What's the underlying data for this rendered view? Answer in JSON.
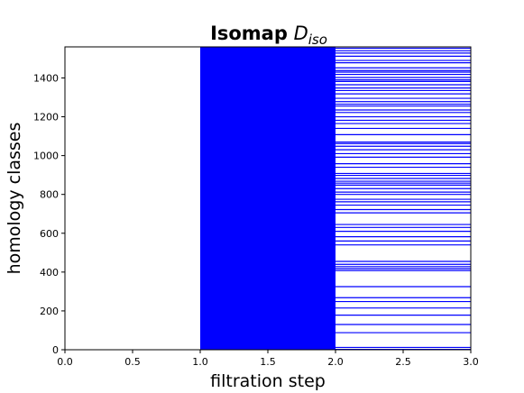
{
  "chart_data": {
    "type": "barcode",
    "title": {
      "bold": "Isomap",
      "math_main": "D",
      "math_sub": "iso"
    },
    "xlabel": "filtration step",
    "ylabel": "homology classes",
    "xlim": [
      0.0,
      3.0
    ],
    "ylim": [
      0,
      1560
    ],
    "xticks": [
      "0.0",
      "0.5",
      "1.0",
      "1.5",
      "2.0",
      "2.5",
      "3.0"
    ],
    "yticks": [
      "0",
      "200",
      "400",
      "600",
      "800",
      "1000",
      "1200",
      "1400"
    ],
    "bar_color": "#0000ff",
    "segments": [
      {
        "name": "dense-block",
        "x_start": 1.0,
        "x_end": 2.0,
        "y_from": 0,
        "y_to": 1560,
        "note": "every class present"
      },
      {
        "name": "sparse-bars",
        "x_start": 2.0,
        "x_end": 3.0
      }
    ],
    "sparse_bar_y": [
      2,
      12,
      88,
      130,
      178,
      215,
      248,
      268,
      325,
      408,
      418,
      428,
      440,
      455,
      540,
      560,
      582,
      610,
      630,
      645,
      705,
      722,
      745,
      762,
      775,
      800,
      812,
      830,
      848,
      858,
      868,
      882,
      898,
      908,
      940,
      958,
      992,
      1010,
      1030,
      1048,
      1062,
      1070,
      1108,
      1140,
      1165,
      1182,
      1200,
      1222,
      1235,
      1255,
      1265,
      1278,
      1295,
      1318,
      1335,
      1348,
      1365,
      1382,
      1390,
      1402,
      1418,
      1430,
      1438,
      1452,
      1478,
      1490,
      1512,
      1528,
      1540,
      1553
    ]
  }
}
